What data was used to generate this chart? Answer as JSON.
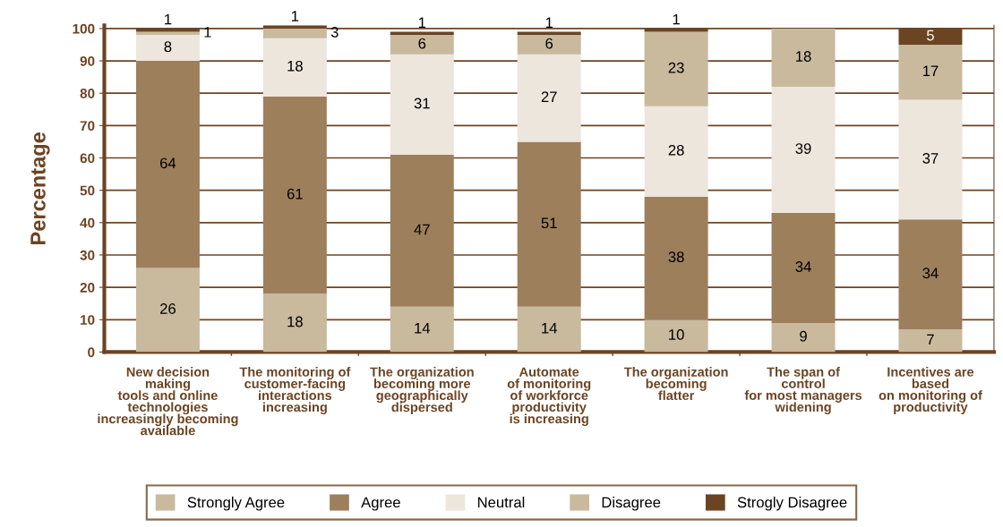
{
  "chart_data": {
    "type": "bar",
    "stacked": true,
    "ylabel": "Percentage",
    "categories": [
      "New decision\nmaking\ntools and online\ntechnologies\nincreasingly becoming\navailable",
      "The monitoring of\ncustomer-facing\ninteractions\nincreasing",
      "The organization\nbecoming more\ngeographically\ndispersed",
      "Automate\nof monitoring\nof workforce\nproductivity\nis increasing",
      "The organization\nbecoming\nflatter",
      "The span of\ncontrol\nfor most managers\nwidening",
      "Incentives are\nbased\non monitoring of\nproductivity"
    ],
    "series": [
      {
        "name": "Strongly Agree",
        "color": "#c9b99d",
        "values": [
          26,
          18,
          14,
          14,
          10,
          9,
          7
        ]
      },
      {
        "name": "Agree",
        "color": "#9d7f5c",
        "values": [
          64,
          61,
          47,
          51,
          38,
          34,
          34
        ]
      },
      {
        "name": "Neutral",
        "color": "#ede6dc",
        "values": [
          8,
          18,
          31,
          27,
          28,
          39,
          37
        ]
      },
      {
        "name": "Disagree",
        "color": "#c9b99d",
        "values": [
          1,
          3,
          6,
          6,
          23,
          18,
          17
        ]
      },
      {
        "name": "Strogly Disagree",
        "color": "#6b4423",
        "values": [
          1,
          1,
          1,
          1,
          1,
          null,
          5
        ]
      }
    ],
    "ylim": [
      0,
      101
    ],
    "yticks": [
      0,
      10,
      20,
      30,
      40,
      50,
      60,
      70,
      80,
      90,
      100
    ],
    "grid": "y",
    "legend": "bottom",
    "data_labels": true
  }
}
